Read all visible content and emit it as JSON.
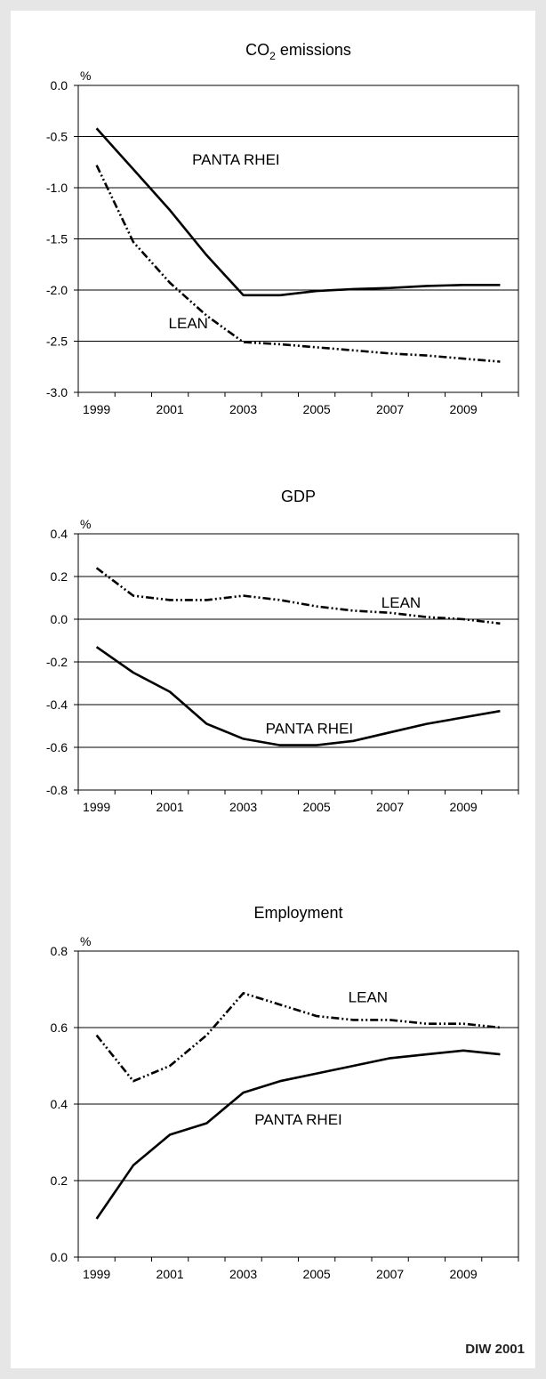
{
  "chart_data": [
    {
      "type": "line",
      "title": "CO2 emissions",
      "title_main": "CO",
      "title_sub": "2",
      "title_rest": " emissions",
      "unit_label": "%",
      "ylim": [
        -3.0,
        0.0
      ],
      "yticks": [
        "0.0",
        "-0.5",
        "-1.0",
        "-1.5",
        "-2.0",
        "-2.5",
        "-3.0"
      ],
      "ytick_values": [
        0.0,
        -0.5,
        -1.0,
        -1.5,
        -2.0,
        -2.5,
        -3.0
      ],
      "xlabels": [
        "1999",
        "2001",
        "2003",
        "2005",
        "2007",
        "2009"
      ],
      "x": [
        1999,
        2000,
        2001,
        2002,
        2003,
        2004,
        2005,
        2006,
        2007,
        2008,
        2009,
        2010
      ],
      "grid": true,
      "series": [
        {
          "name": "PANTA RHEI",
          "style": "solid",
          "values": [
            -0.42,
            -0.82,
            -1.22,
            -1.66,
            -2.05,
            -2.05,
            -2.01,
            -1.99,
            -1.98,
            -1.96,
            -1.95,
            -1.95
          ]
        },
        {
          "name": "LEAN",
          "style": "dashdot",
          "values": [
            -0.78,
            -1.53,
            -1.93,
            -2.25,
            -2.51,
            -2.53,
            -2.56,
            -2.59,
            -2.62,
            -2.64,
            -2.67,
            -2.7
          ]
        }
      ],
      "annotations": [
        {
          "text": "PANTA RHEI",
          "x": 2002.8,
          "y": -0.72
        },
        {
          "text": "LEAN",
          "x": 2001.5,
          "y": -2.32
        }
      ]
    },
    {
      "type": "line",
      "title": "GDP",
      "unit_label": "%",
      "ylim": [
        -0.8,
        0.4
      ],
      "yticks": [
        "0.4",
        "0.2",
        "0.0",
        "-0.2",
        "-0.4",
        "-0.6",
        "-0.8"
      ],
      "ytick_values": [
        0.4,
        0.2,
        0.0,
        -0.2,
        -0.4,
        -0.6,
        -0.8
      ],
      "xlabels": [
        "1999",
        "2001",
        "2003",
        "2005",
        "2007",
        "2009"
      ],
      "x": [
        1999,
        2000,
        2001,
        2002,
        2003,
        2004,
        2005,
        2006,
        2007,
        2008,
        2009,
        2010
      ],
      "grid": true,
      "series": [
        {
          "name": "LEAN",
          "style": "dashdot",
          "values": [
            0.24,
            0.11,
            0.09,
            0.09,
            0.11,
            0.09,
            0.06,
            0.04,
            0.03,
            0.01,
            0.0,
            -0.02
          ]
        },
        {
          "name": "PANTA RHEI",
          "style": "solid",
          "values": [
            -0.13,
            -0.25,
            -0.34,
            -0.49,
            -0.56,
            -0.59,
            -0.59,
            -0.57,
            -0.53,
            -0.49,
            -0.46,
            -0.43
          ]
        }
      ],
      "annotations": [
        {
          "text": "LEAN",
          "x": 2007.3,
          "y": 0.08
        },
        {
          "text": "PANTA RHEI",
          "x": 2004.8,
          "y": -0.51
        }
      ]
    },
    {
      "type": "line",
      "title": "Employment",
      "unit_label": "%",
      "ylim": [
        0.0,
        0.8
      ],
      "yticks": [
        "0.8",
        "0.6",
        "0.4",
        "0.2",
        "0.0"
      ],
      "ytick_values": [
        0.8,
        0.6,
        0.4,
        0.2,
        0.0
      ],
      "xlabels": [
        "1999",
        "2001",
        "2003",
        "2005",
        "2007",
        "2009"
      ],
      "x": [
        1999,
        2000,
        2001,
        2002,
        2003,
        2004,
        2005,
        2006,
        2007,
        2008,
        2009,
        2010
      ],
      "grid": true,
      "series": [
        {
          "name": "LEAN",
          "style": "dashdot",
          "values": [
            0.58,
            0.46,
            0.5,
            0.58,
            0.69,
            0.66,
            0.63,
            0.62,
            0.62,
            0.61,
            0.61,
            0.6
          ]
        },
        {
          "name": "PANTA RHEI",
          "style": "solid",
          "values": [
            0.1,
            0.24,
            0.32,
            0.35,
            0.43,
            0.46,
            0.48,
            0.5,
            0.52,
            0.53,
            0.54,
            0.53
          ]
        }
      ],
      "annotations": [
        {
          "text": "LEAN",
          "x": 2006.4,
          "y": 0.68
        },
        {
          "text": "PANTA RHEI",
          "x": 2004.5,
          "y": 0.36
        }
      ]
    }
  ],
  "credit": "DIW 2001"
}
